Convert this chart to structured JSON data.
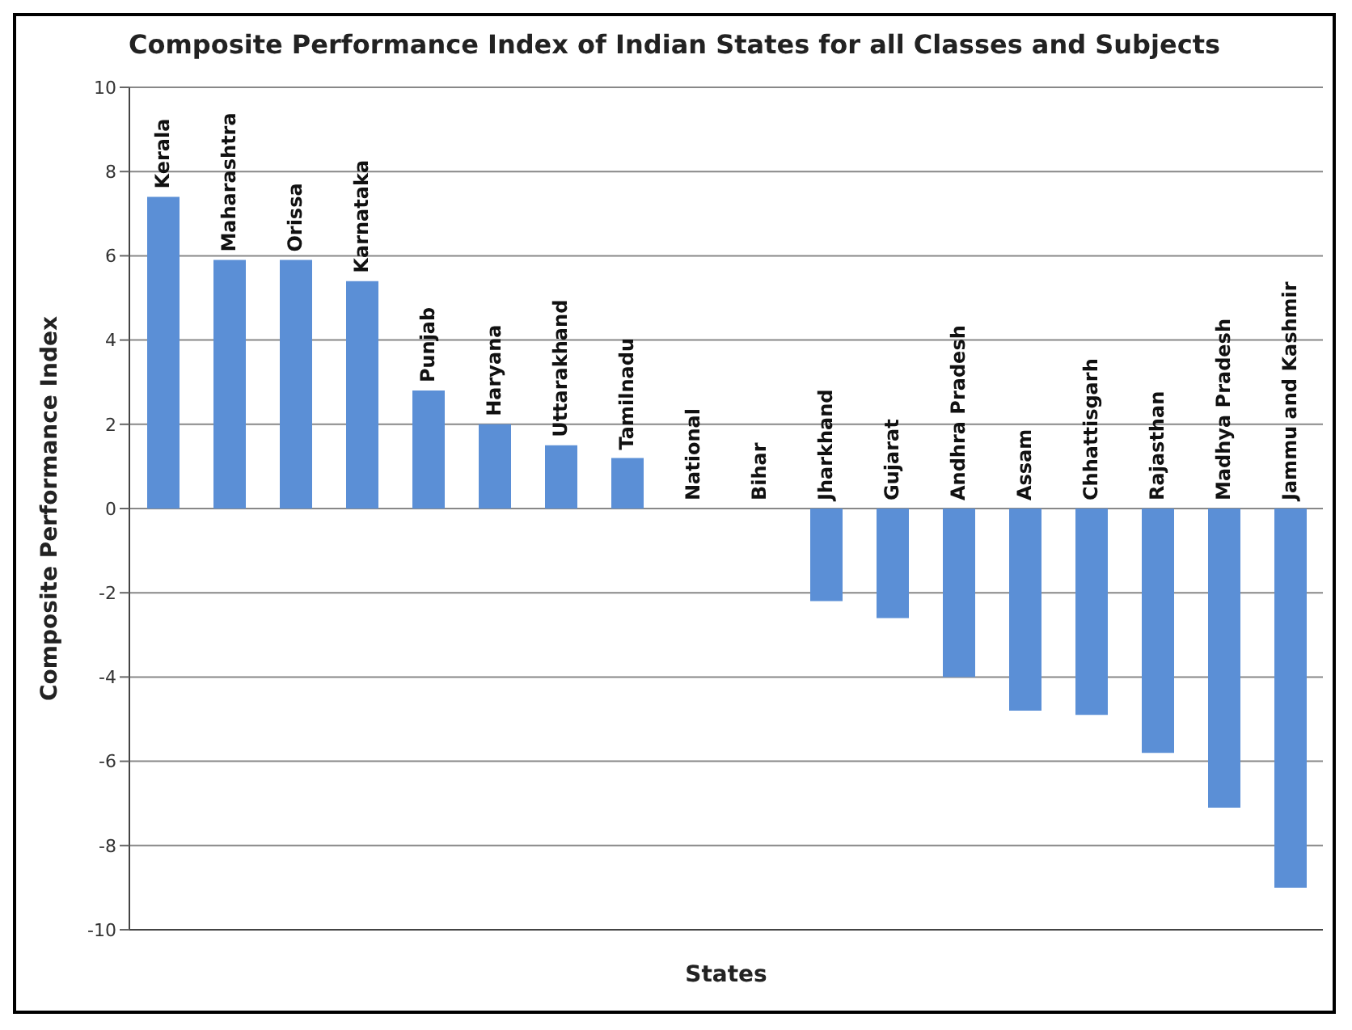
{
  "chart_data": {
    "type": "bar",
    "title": "Composite Performance Index of Indian States for all Classes and Subjects",
    "xlabel": "States",
    "ylabel": "Composite Performance Index",
    "categories": [
      "Kerala",
      "Maharashtra",
      "Orissa",
      "Karnataka",
      "Punjab",
      "Haryana",
      "Uttarakhand",
      "Tamilnadu",
      "National",
      "Bihar",
      "Jharkhand",
      "Gujarat",
      "Andhra Pradesh",
      "Assam",
      "Chhattisgarh",
      "Rajasthan",
      "Madhya Pradesh",
      "Jammu and Kashmir"
    ],
    "values": [
      7.4,
      5.9,
      5.9,
      5.4,
      2.8,
      2.0,
      1.5,
      1.2,
      0,
      0,
      -2.2,
      -2.6,
      -4.0,
      -4.8,
      -4.9,
      -5.8,
      -7.1,
      -9.0
    ],
    "color": "#5b8fd6",
    "ylim": [
      -10,
      10
    ],
    "yticks": [
      -10,
      -8,
      -6,
      -4,
      -2,
      0,
      2,
      4,
      6,
      8,
      10
    ],
    "grid": "y"
  }
}
